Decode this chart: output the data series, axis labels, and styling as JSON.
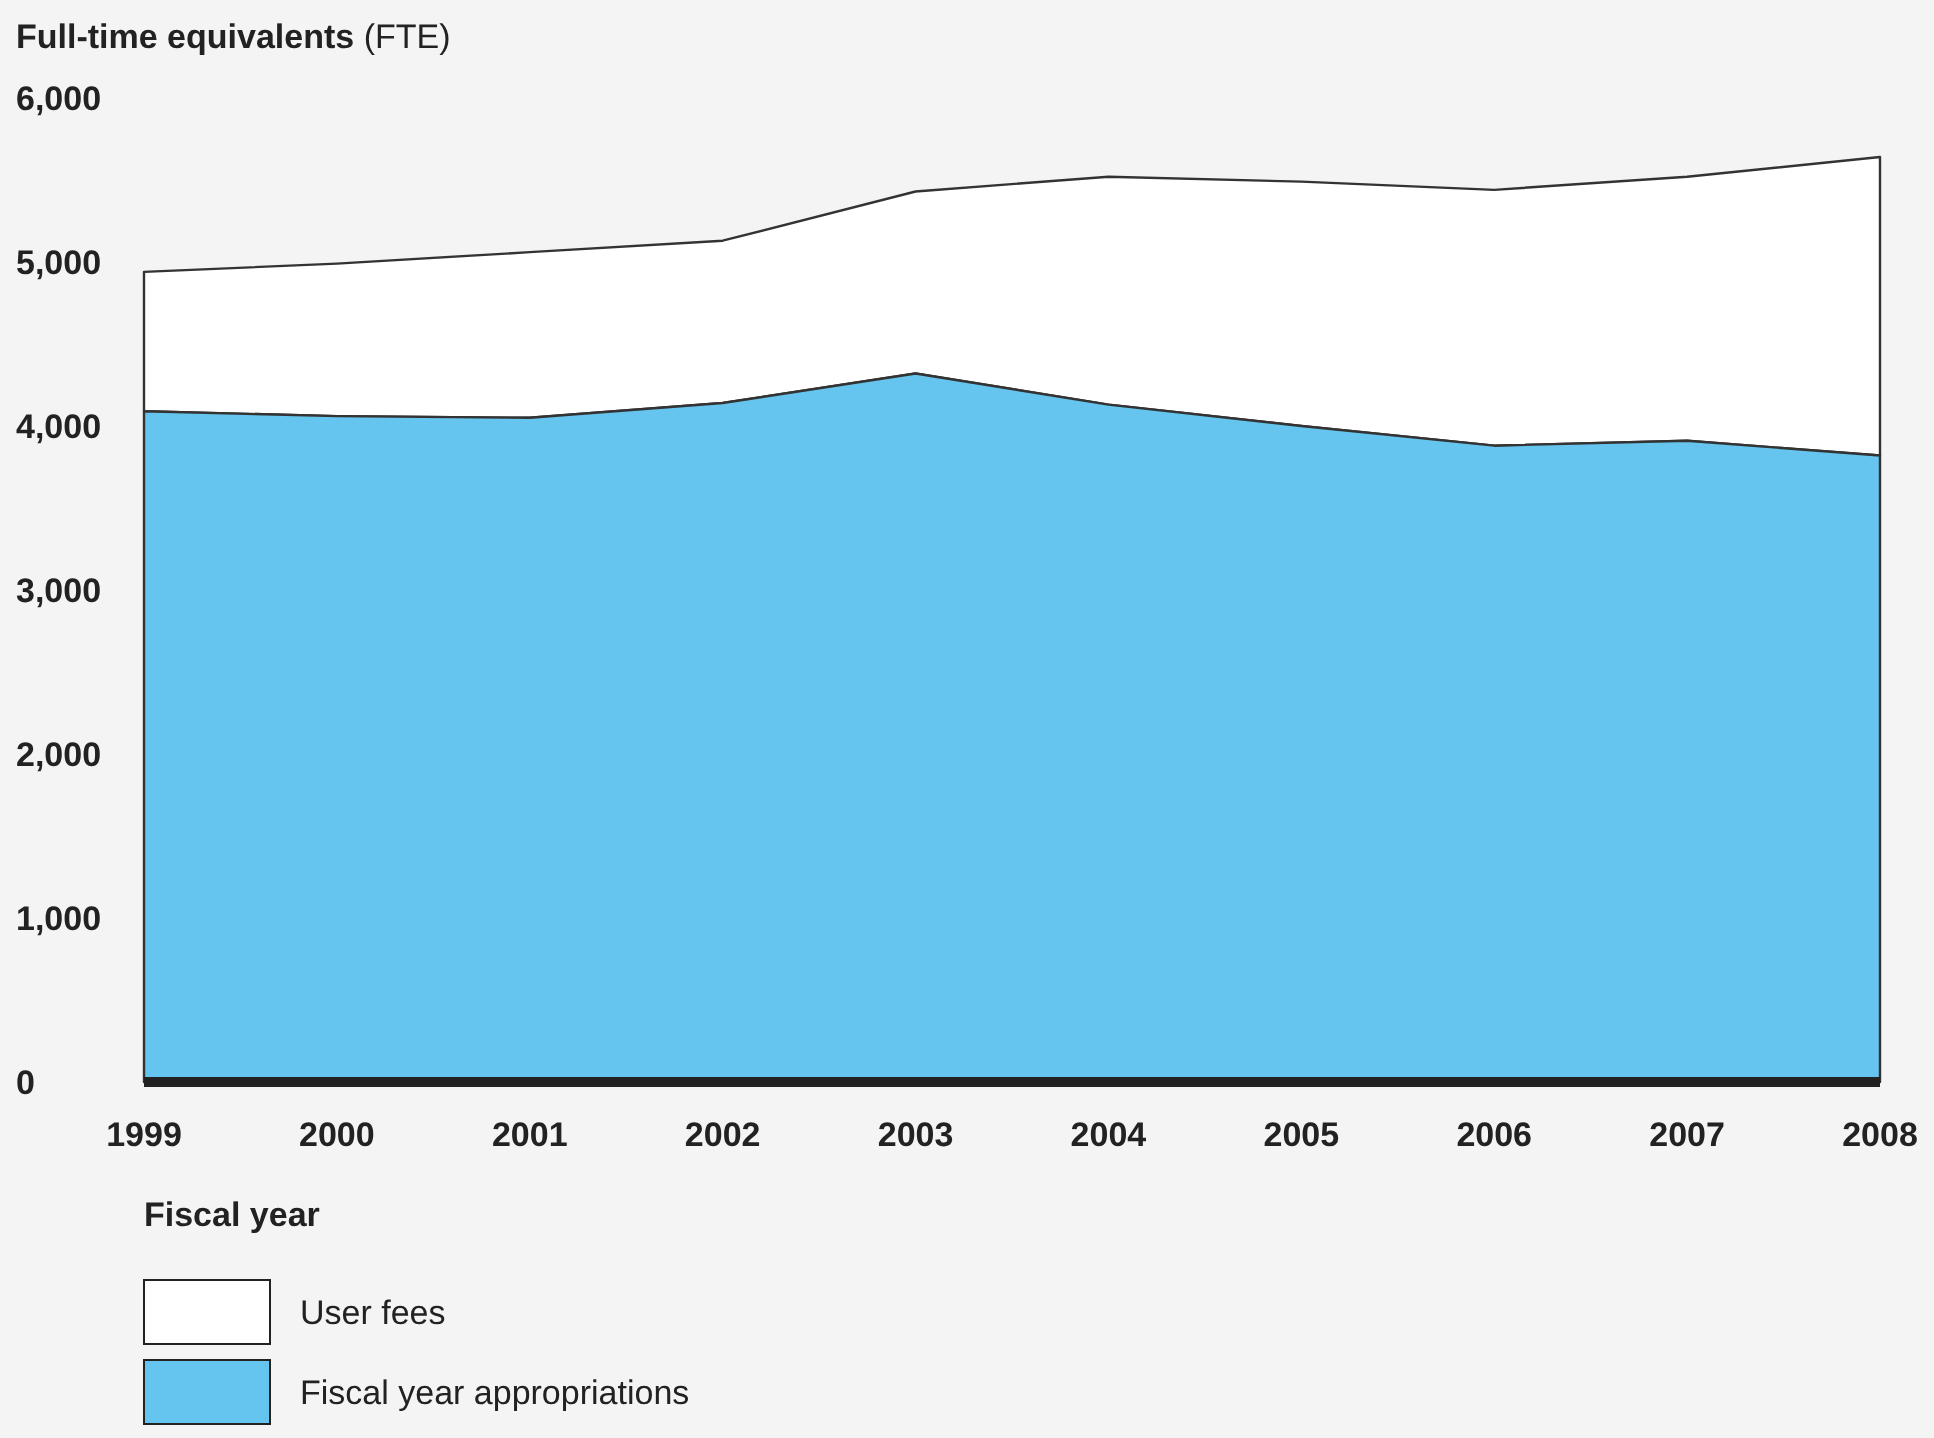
{
  "chart_data": {
    "type": "area",
    "stacked": true,
    "ylabel": "Full-time equivalents (FTE)",
    "xlabel": "Fiscal year",
    "x": [
      1999,
      2000,
      2001,
      2002,
      2003,
      2004,
      2005,
      2006,
      2007,
      2008
    ],
    "series": [
      {
        "name": "Fiscal year appropriations",
        "color": "#66c5ee",
        "values": [
          4090,
          4060,
          4050,
          4140,
          4320,
          4130,
          4000,
          3880,
          3910,
          3820
        ]
      },
      {
        "name": "User fees",
        "color": "#ffffff",
        "values": [
          850,
          930,
          1010,
          990,
          1110,
          1390,
          1490,
          1560,
          1610,
          1820
        ]
      }
    ],
    "xlim": [
      1999,
      2008
    ],
    "xticks": [
      1999,
      2000,
      2001,
      2002,
      2003,
      2004,
      2005,
      2006,
      2007,
      2008
    ],
    "ylim": [
      0,
      6000
    ],
    "yticks": [
      {
        "value": 0,
        "label": "0"
      },
      {
        "value": 1000,
        "label": "1,000"
      },
      {
        "value": 2000,
        "label": "2,000"
      },
      {
        "value": 3000,
        "label": "3,000"
      },
      {
        "value": 4000,
        "label": "4,000"
      },
      {
        "value": 5000,
        "label": "5,000"
      },
      {
        "value": 6000,
        "label": "6,000"
      }
    ],
    "grid": false,
    "legend": "bottom left"
  }
}
